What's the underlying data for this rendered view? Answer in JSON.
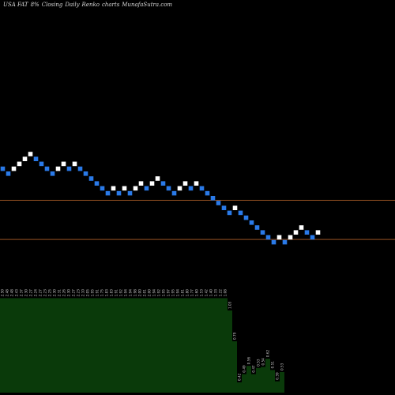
{
  "chart_data": {
    "type": "renko",
    "title": {
      "ticker": "USA FAT",
      "change": "8%",
      "mode": "Closing",
      "interval": "Daily",
      "chart_type": "Renko",
      "suffix": "charts",
      "source": "MunafaSutra.com"
    },
    "colors": {
      "up_brick": "#ffffff",
      "down_brick": "#2a7ae8",
      "reference_line": "#b0602a",
      "volume": "#0a3a0a",
      "label": "#c8c8c8"
    },
    "bricks": [
      {
        "value": 21.0,
        "dir": "down"
      },
      {
        "value": 20.0,
        "dir": "down"
      },
      {
        "value": 21.0,
        "dir": "up"
      },
      {
        "value": 22.0,
        "dir": "up"
      },
      {
        "value": 23.0,
        "dir": "up"
      },
      {
        "value": 24.0,
        "dir": "up"
      },
      {
        "value": 23.0,
        "dir": "down"
      },
      {
        "value": 22.0,
        "dir": "down"
      },
      {
        "value": 21.0,
        "dir": "down"
      },
      {
        "value": 20.0,
        "dir": "down"
      },
      {
        "value": 21.0,
        "dir": "up"
      },
      {
        "value": 22.0,
        "dir": "up"
      },
      {
        "value": 21.0,
        "dir": "down"
      },
      {
        "value": 22.0,
        "dir": "up"
      },
      {
        "value": 21.0,
        "dir": "down"
      },
      {
        "value": 20.0,
        "dir": "down"
      },
      {
        "value": 19.0,
        "dir": "down"
      },
      {
        "value": 18.0,
        "dir": "down"
      },
      {
        "value": 17.0,
        "dir": "down"
      },
      {
        "value": 16.0,
        "dir": "down"
      },
      {
        "value": 17.0,
        "dir": "up"
      },
      {
        "value": 16.0,
        "dir": "down"
      },
      {
        "value": 17.0,
        "dir": "up"
      },
      {
        "value": 16.0,
        "dir": "down"
      },
      {
        "value": 17.0,
        "dir": "up"
      },
      {
        "value": 18.0,
        "dir": "up"
      },
      {
        "value": 17.0,
        "dir": "down"
      },
      {
        "value": 18.0,
        "dir": "up"
      },
      {
        "value": 19.0,
        "dir": "up"
      },
      {
        "value": 18.0,
        "dir": "down"
      },
      {
        "value": 17.0,
        "dir": "down"
      },
      {
        "value": 16.0,
        "dir": "down"
      },
      {
        "value": 17.0,
        "dir": "up"
      },
      {
        "value": 18.0,
        "dir": "up"
      },
      {
        "value": 17.0,
        "dir": "down"
      },
      {
        "value": 18.0,
        "dir": "up"
      },
      {
        "value": 17.0,
        "dir": "down"
      },
      {
        "value": 16.0,
        "dir": "down"
      },
      {
        "value": 15.0,
        "dir": "down"
      },
      {
        "value": 14.0,
        "dir": "down"
      },
      {
        "value": 13.0,
        "dir": "down"
      },
      {
        "value": 12.0,
        "dir": "down"
      },
      {
        "value": 13.0,
        "dir": "up"
      },
      {
        "value": 12.0,
        "dir": "down"
      },
      {
        "value": 11.0,
        "dir": "down"
      },
      {
        "value": 10.0,
        "dir": "down"
      },
      {
        "value": 9.0,
        "dir": "down"
      },
      {
        "value": 8.0,
        "dir": "down"
      },
      {
        "value": 7.0,
        "dir": "down"
      },
      {
        "value": 6.0,
        "dir": "down"
      },
      {
        "value": 7.0,
        "dir": "up"
      },
      {
        "value": 6.0,
        "dir": "down"
      },
      {
        "value": 7.0,
        "dir": "up"
      },
      {
        "value": 8.0,
        "dir": "up"
      },
      {
        "value": 9.0,
        "dir": "up"
      },
      {
        "value": 8.0,
        "dir": "down"
      },
      {
        "value": 7.0,
        "dir": "down"
      },
      {
        "value": 8.0,
        "dir": "up"
      }
    ],
    "reference_lines": [
      15.2,
      7.2
    ],
    "volume_bars": [
      {
        "label": "2.50",
        "value": 0.92
      },
      {
        "label": "2.48",
        "value": 0.92
      },
      {
        "label": "2.48",
        "value": 0.92
      },
      {
        "label": "2.43",
        "value": 0.92
      },
      {
        "label": "2.37",
        "value": 0.92
      },
      {
        "label": "2.30",
        "value": 0.92
      },
      {
        "label": "2.27",
        "value": 0.92
      },
      {
        "label": "2.24",
        "value": 0.92
      },
      {
        "label": "2.27",
        "value": 0.92
      },
      {
        "label": "2.23",
        "value": 0.92
      },
      {
        "label": "2.25",
        "value": 0.92
      },
      {
        "label": "2.30",
        "value": 0.92
      },
      {
        "label": "2.31",
        "value": 0.92
      },
      {
        "label": "2.26",
        "value": 0.92
      },
      {
        "label": "2.30",
        "value": 0.92
      },
      {
        "label": "2.27",
        "value": 0.92
      },
      {
        "label": "2.23",
        "value": 0.92
      },
      {
        "label": "2.10",
        "value": 0.92
      },
      {
        "label": "2.05",
        "value": 0.92
      },
      {
        "label": "1.95",
        "value": 0.92
      },
      {
        "label": "1.91",
        "value": 0.92
      },
      {
        "label": "1.75",
        "value": 0.92
      },
      {
        "label": "1.83",
        "value": 0.92
      },
      {
        "label": "1.83",
        "value": 0.92
      },
      {
        "label": "1.91",
        "value": 0.92
      },
      {
        "label": "1.92",
        "value": 0.92
      },
      {
        "label": "1.94",
        "value": 0.92
      },
      {
        "label": "1.94",
        "value": 0.92
      },
      {
        "label": "1.98",
        "value": 0.92
      },
      {
        "label": "2.00",
        "value": 0.92
      },
      {
        "label": "2.01",
        "value": 0.92
      },
      {
        "label": "2.00",
        "value": 0.92
      },
      {
        "label": "1.94",
        "value": 0.92
      },
      {
        "label": "1.92",
        "value": 0.92
      },
      {
        "label": "1.95",
        "value": 0.92
      },
      {
        "label": "1.97",
        "value": 0.92
      },
      {
        "label": "1.95",
        "value": 0.92
      },
      {
        "label": "1.94",
        "value": 0.92
      },
      {
        "label": "1.81",
        "value": 0.92
      },
      {
        "label": "1.80",
        "value": 0.92
      },
      {
        "label": "1.77",
        "value": 0.92
      },
      {
        "label": "1.60",
        "value": 0.92
      },
      {
        "label": "1.53",
        "value": 0.92
      },
      {
        "label": "1.42",
        "value": 0.92
      },
      {
        "label": "1.40",
        "value": 0.92
      },
      {
        "label": "1.33",
        "value": 0.92
      },
      {
        "label": "1.22",
        "value": 0.92
      },
      {
        "label": "1.08",
        "value": 0.92
      },
      {
        "label": "1.03",
        "value": 0.8
      },
      {
        "label": "0.79",
        "value": 0.5
      },
      {
        "label": "0.42",
        "value": 0.1
      },
      {
        "label": "0.49",
        "value": 0.18
      },
      {
        "label": "0.56",
        "value": 0.26
      },
      {
        "label": "0.47",
        "value": 0.18
      },
      {
        "label": "0.53",
        "value": 0.24
      },
      {
        "label": "0.54",
        "value": 0.25
      },
      {
        "label": "0.62",
        "value": 0.33
      },
      {
        "label": "0.51",
        "value": 0.22
      },
      {
        "label": "0.39",
        "value": 0.11
      },
      {
        "label": "0.53",
        "value": 0.2
      }
    ]
  }
}
